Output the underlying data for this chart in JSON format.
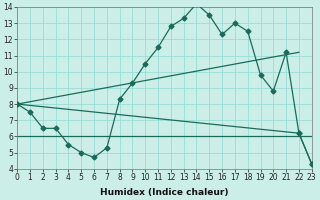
{
  "xlabel": "Humidex (Indice chaleur)",
  "bg_color": "#cceee8",
  "grid_color": "#99ddd5",
  "line_color": "#1a6b5a",
  "xlim": [
    0,
    23
  ],
  "ylim": [
    4,
    14
  ],
  "xticks": [
    0,
    1,
    2,
    3,
    4,
    5,
    6,
    7,
    8,
    9,
    10,
    11,
    12,
    13,
    14,
    15,
    16,
    17,
    18,
    19,
    20,
    21,
    22,
    23
  ],
  "yticks": [
    4,
    5,
    6,
    7,
    8,
    9,
    10,
    11,
    12,
    13,
    14
  ],
  "line1_x": [
    0,
    1,
    2,
    3,
    4,
    5,
    6,
    7,
    8,
    9,
    10,
    11,
    12,
    13,
    14,
    15,
    16,
    17,
    18,
    19,
    20,
    21,
    22,
    23
  ],
  "line1_y": [
    8.0,
    7.5,
    6.5,
    6.5,
    5.5,
    5.0,
    4.7,
    5.3,
    8.3,
    9.3,
    10.5,
    11.5,
    12.8,
    13.3,
    14.2,
    13.5,
    12.3,
    13.0,
    12.5,
    9.8,
    8.8,
    11.2,
    6.2,
    4.3
  ],
  "line2_x": [
    0,
    22,
    23
  ],
  "line2_y": [
    8.0,
    6.2,
    4.3
  ],
  "line3_x": [
    0,
    23
  ],
  "line3_y": [
    6.0,
    6.0
  ],
  "line4_x": [
    0,
    22
  ],
  "line4_y": [
    8.0,
    11.2
  ],
  "markersize": 2.5,
  "linewidth": 0.9,
  "tick_fontsize": 5.5,
  "xlabel_fontsize": 6.5
}
